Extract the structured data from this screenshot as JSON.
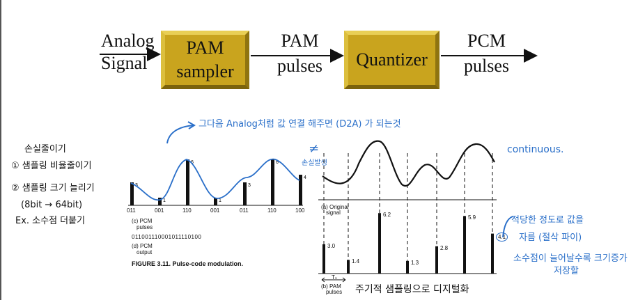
{
  "flow": {
    "analog_line1": "Analog",
    "analog_line2": "Signal",
    "pam_sampler_line1": "PAM",
    "pam_sampler_line2": "sampler",
    "pam_pulses_line1": "PAM",
    "pam_pulses_line2": "pulses",
    "quantizer": "Quantizer",
    "pcm_pulses_line1": "PCM",
    "pcm_pulses_line2": "pulses"
  },
  "notes": {
    "top_blue": "그다음 Analog처럼 값 연결 해주면 (D2A) 가 되는것",
    "not_equal": "≠",
    "not_equal_sub": "손실발생",
    "continuous": "continuous.",
    "left_1": "손실줄이기",
    "left_2": "① 샘플링 비율줄이기",
    "left_3": "② 샘플링 크기 늘리기",
    "left_4": "(8bit → 64bit)",
    "left_5": "Ex. 소수점 더붙기",
    "right_1": "적당한 정도로 값을",
    "right_2": "자름 (절삭 파이)",
    "right_3": "소수점이 늘어날수록 크기증가",
    "right_4": "저장할",
    "bottom": "주기적 샘플링으로 디지털화"
  },
  "fig_left": {
    "codes": [
      "011",
      "001",
      "110",
      "001",
      "011",
      "110",
      "100"
    ],
    "bar_labels": [
      "3",
      "1",
      "6",
      "1",
      "3",
      "6",
      "4"
    ],
    "label_c": "(c) PCM",
    "label_c2": "pulses",
    "bitstream": "011001110001011110100",
    "label_d": "(d) PCM",
    "label_d2": "output",
    "caption": "FIGURE 3.11.   Pulse-code modulation."
  },
  "fig_right": {
    "label_a": "(a) Original",
    "label_a2": "signal",
    "values": [
      "3.0",
      "1.4",
      "6.2",
      "1.3",
      "2.8",
      "5.9",
      "4.1"
    ],
    "label_b": "(b) PAM",
    "label_b2": "pulses",
    "period": "Tₛ"
  }
}
